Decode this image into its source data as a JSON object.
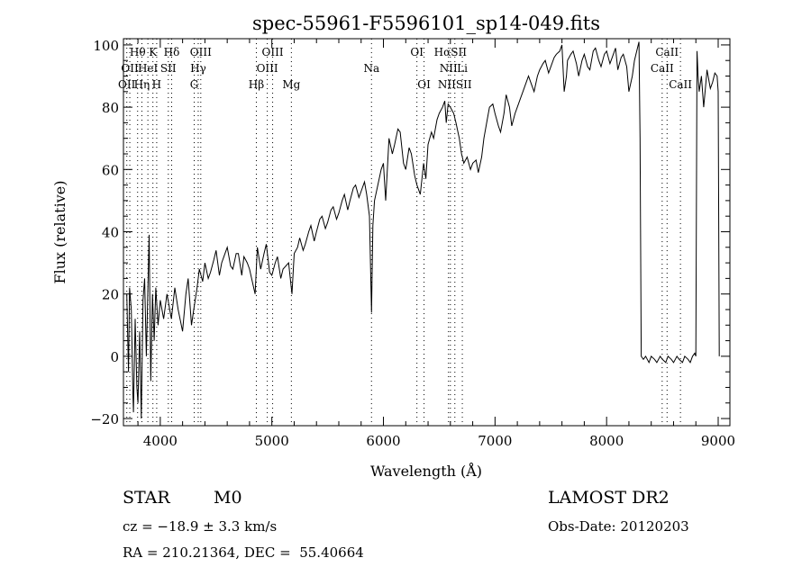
{
  "chart_data": {
    "type": "line",
    "title": "spec-55961-F5596101_sp14-049.fits",
    "xlabel": "Wavelength (Å)",
    "ylabel": "Flux (relative)",
    "xlim": [
      3670,
      9105
    ],
    "ylim": [
      -22.3,
      102
    ],
    "xticks": [
      4000,
      5000,
      6000,
      7000,
      8000,
      9000
    ],
    "yticks": [
      -20,
      0,
      20,
      40,
      60,
      80,
      100
    ],
    "grid": false,
    "series": [
      {
        "name": "spectrum",
        "points": [
          [
            3700,
            20
          ],
          [
            3715,
            -5
          ],
          [
            3725,
            22
          ],
          [
            3740,
            15
          ],
          [
            3755,
            -12
          ],
          [
            3760,
            -18
          ],
          [
            3775,
            12
          ],
          [
            3790,
            -10
          ],
          [
            3800,
            -15
          ],
          [
            3815,
            8
          ],
          [
            3830,
            -20
          ],
          [
            3845,
            18
          ],
          [
            3860,
            25
          ],
          [
            3875,
            0
          ],
          [
            3885,
            15
          ],
          [
            3900,
            39
          ],
          [
            3915,
            -8
          ],
          [
            3930,
            20
          ],
          [
            3945,
            5
          ],
          [
            3960,
            22
          ],
          [
            3980,
            10
          ],
          [
            4000,
            18
          ],
          [
            4030,
            12
          ],
          [
            4060,
            20
          ],
          [
            4100,
            12
          ],
          [
            4130,
            22
          ],
          [
            4160,
            15
          ],
          [
            4200,
            8
          ],
          [
            4230,
            20
          ],
          [
            4250,
            25
          ],
          [
            4280,
            10
          ],
          [
            4300,
            15
          ],
          [
            4330,
            22
          ],
          [
            4350,
            28
          ],
          [
            4380,
            24
          ],
          [
            4400,
            30
          ],
          [
            4430,
            25
          ],
          [
            4450,
            27
          ],
          [
            4480,
            31
          ],
          [
            4500,
            34
          ],
          [
            4530,
            26
          ],
          [
            4550,
            30
          ],
          [
            4580,
            33
          ],
          [
            4600,
            35
          ],
          [
            4630,
            29
          ],
          [
            4650,
            28
          ],
          [
            4680,
            33
          ],
          [
            4700,
            33
          ],
          [
            4730,
            26
          ],
          [
            4750,
            32
          ],
          [
            4780,
            30
          ],
          [
            4800,
            28
          ],
          [
            4850,
            20
          ],
          [
            4870,
            35
          ],
          [
            4900,
            28
          ],
          [
            4930,
            33
          ],
          [
            4950,
            36
          ],
          [
            4980,
            27
          ],
          [
            5000,
            26
          ],
          [
            5030,
            30
          ],
          [
            5050,
            32
          ],
          [
            5080,
            25
          ],
          [
            5100,
            28
          ],
          [
            5150,
            30
          ],
          [
            5180,
            20
          ],
          [
            5200,
            33
          ],
          [
            5230,
            35
          ],
          [
            5250,
            38
          ],
          [
            5280,
            34
          ],
          [
            5300,
            36
          ],
          [
            5330,
            40
          ],
          [
            5350,
            42
          ],
          [
            5380,
            37
          ],
          [
            5400,
            40
          ],
          [
            5430,
            44
          ],
          [
            5450,
            45
          ],
          [
            5480,
            41
          ],
          [
            5500,
            43
          ],
          [
            5530,
            47
          ],
          [
            5550,
            48
          ],
          [
            5580,
            44
          ],
          [
            5600,
            46
          ],
          [
            5630,
            50
          ],
          [
            5650,
            52
          ],
          [
            5680,
            47
          ],
          [
            5700,
            50
          ],
          [
            5730,
            54
          ],
          [
            5750,
            55
          ],
          [
            5780,
            51
          ],
          [
            5800,
            53
          ],
          [
            5830,
            56
          ],
          [
            5850,
            52
          ],
          [
            5875,
            45
          ],
          [
            5893,
            14
          ],
          [
            5905,
            42
          ],
          [
            5920,
            50
          ],
          [
            5950,
            55
          ],
          [
            5980,
            60
          ],
          [
            6000,
            62
          ],
          [
            6020,
            50
          ],
          [
            6050,
            70
          ],
          [
            6080,
            65
          ],
          [
            6100,
            68
          ],
          [
            6130,
            73
          ],
          [
            6150,
            72
          ],
          [
            6180,
            62
          ],
          [
            6200,
            60
          ],
          [
            6230,
            67
          ],
          [
            6250,
            65
          ],
          [
            6280,
            58
          ],
          [
            6300,
            55
          ],
          [
            6330,
            52
          ],
          [
            6360,
            62
          ],
          [
            6380,
            57
          ],
          [
            6400,
            68
          ],
          [
            6430,
            72
          ],
          [
            6450,
            70
          ],
          [
            6480,
            76
          ],
          [
            6500,
            78
          ],
          [
            6530,
            80
          ],
          [
            6550,
            82
          ],
          [
            6563,
            75
          ],
          [
            6580,
            81
          ],
          [
            6600,
            80
          ],
          [
            6630,
            78
          ],
          [
            6650,
            75
          ],
          [
            6680,
            70
          ],
          [
            6700,
            65
          ],
          [
            6720,
            62
          ],
          [
            6750,
            64
          ],
          [
            6780,
            60
          ],
          [
            6800,
            62
          ],
          [
            6830,
            63
          ],
          [
            6850,
            59
          ],
          [
            6880,
            64
          ],
          [
            6900,
            70
          ],
          [
            6930,
            76
          ],
          [
            6950,
            80
          ],
          [
            6980,
            81
          ],
          [
            7000,
            78
          ],
          [
            7030,
            74
          ],
          [
            7050,
            72
          ],
          [
            7080,
            78
          ],
          [
            7100,
            84
          ],
          [
            7130,
            80
          ],
          [
            7150,
            74
          ],
          [
            7180,
            78
          ],
          [
            7200,
            80
          ],
          [
            7230,
            83
          ],
          [
            7250,
            85
          ],
          [
            7280,
            88
          ],
          [
            7300,
            90
          ],
          [
            7330,
            87
          ],
          [
            7350,
            85
          ],
          [
            7380,
            90
          ],
          [
            7400,
            92
          ],
          [
            7430,
            94
          ],
          [
            7450,
            95
          ],
          [
            7480,
            91
          ],
          [
            7500,
            93
          ],
          [
            7530,
            96
          ],
          [
            7550,
            97
          ],
          [
            7580,
            98
          ],
          [
            7600,
            100
          ],
          [
            7620,
            85
          ],
          [
            7640,
            90
          ],
          [
            7650,
            95
          ],
          [
            7680,
            97
          ],
          [
            7700,
            98
          ],
          [
            7730,
            94
          ],
          [
            7750,
            90
          ],
          [
            7780,
            95
          ],
          [
            7800,
            97
          ],
          [
            7830,
            93
          ],
          [
            7850,
            92
          ],
          [
            7880,
            98
          ],
          [
            7900,
            99
          ],
          [
            7930,
            95
          ],
          [
            7950,
            93
          ],
          [
            7980,
            97
          ],
          [
            8000,
            98
          ],
          [
            8030,
            94
          ],
          [
            8050,
            96
          ],
          [
            8080,
            99
          ],
          [
            8100,
            92
          ],
          [
            8130,
            96
          ],
          [
            8150,
            97
          ],
          [
            8180,
            93
          ],
          [
            8200,
            85
          ],
          [
            8230,
            90
          ],
          [
            8250,
            95
          ],
          [
            8270,
            98
          ],
          [
            8290,
            101
          ],
          [
            8300,
            70
          ],
          [
            8310,
            0
          ],
          [
            8330,
            -1
          ],
          [
            8350,
            0
          ],
          [
            8380,
            -2
          ],
          [
            8400,
            0
          ],
          [
            8430,
            -1
          ],
          [
            8450,
            -2
          ],
          [
            8480,
            0
          ],
          [
            8500,
            -1
          ],
          [
            8530,
            -2
          ],
          [
            8550,
            0
          ],
          [
            8580,
            -1
          ],
          [
            8600,
            -2
          ],
          [
            8630,
            0
          ],
          [
            8650,
            -1
          ],
          [
            8680,
            -2
          ],
          [
            8700,
            0
          ],
          [
            8730,
            -1
          ],
          [
            8750,
            -2
          ],
          [
            8770,
            0
          ],
          [
            8790,
            1
          ],
          [
            8800,
            0
          ],
          [
            8810,
            98
          ],
          [
            8820,
            90
          ],
          [
            8830,
            85
          ],
          [
            8850,
            90
          ],
          [
            8870,
            80
          ],
          [
            8890,
            88
          ],
          [
            8900,
            92
          ],
          [
            8930,
            86
          ],
          [
            8950,
            88
          ],
          [
            8970,
            91
          ],
          [
            8990,
            90
          ],
          [
            9000,
            85
          ],
          [
            9010,
            0
          ]
        ]
      }
    ],
    "lines": [
      {
        "label": "Hθ",
        "wavelength": 3797,
        "row": 0
      },
      {
        "label": "K",
        "wavelength": 3934,
        "row": 0
      },
      {
        "label": "Hδ",
        "wavelength": 4102,
        "row": 0
      },
      {
        "label": "OIII",
        "wavelength": 4363,
        "row": 0
      },
      {
        "label": "OIII",
        "wavelength": 5007,
        "row": 0
      },
      {
        "label": "OI",
        "wavelength": 6300,
        "row": 0
      },
      {
        "label": "HαSII",
        "wavelength": 6600,
        "row": 0
      },
      {
        "label": "CaII",
        "wavelength": 8542,
        "row": 0
      },
      {
        "label": "OII",
        "wavelength": 3727,
        "row": 1
      },
      {
        "label": "HeI",
        "wavelength": 3889,
        "row": 1
      },
      {
        "label": "SII",
        "wavelength": 4072,
        "row": 1
      },
      {
        "label": "Hγ",
        "wavelength": 4340,
        "row": 1
      },
      {
        "label": "OIII",
        "wavelength": 4959,
        "row": 1
      },
      {
        "label": "Na",
        "wavelength": 5893,
        "row": 1
      },
      {
        "label": "NII",
        "wavelength": 6583,
        "row": 1
      },
      {
        "label": "Li",
        "wavelength": 6707,
        "row": 1
      },
      {
        "label": "CaII",
        "wavelength": 8498,
        "row": 1
      },
      {
        "label": "OII",
        "wavelength": 3700,
        "row": 2
      },
      {
        "label": "Hη",
        "wavelength": 3835,
        "row": 2
      },
      {
        "label": "H",
        "wavelength": 3968,
        "row": 2
      },
      {
        "label": "G",
        "wavelength": 4304,
        "row": 2
      },
      {
        "label": "Hβ",
        "wavelength": 4861,
        "row": 2
      },
      {
        "label": "Mg",
        "wavelength": 5175,
        "row": 2
      },
      {
        "label": "OI",
        "wavelength": 6364,
        "row": 2
      },
      {
        "label": "NIISII",
        "wavelength": 6640,
        "row": 2
      },
      {
        "label": "CaII",
        "wavelength": 8662,
        "row": 2
      }
    ]
  },
  "info": {
    "object_class": "STAR",
    "subclass": "M0",
    "cz": "cz = −18.9 ± 3.3 km/s",
    "coords": "RA = 210.21364, DEC =  55.40664",
    "survey": "LAMOST DR2",
    "obs_date": "Obs-Date: 20120203"
  }
}
